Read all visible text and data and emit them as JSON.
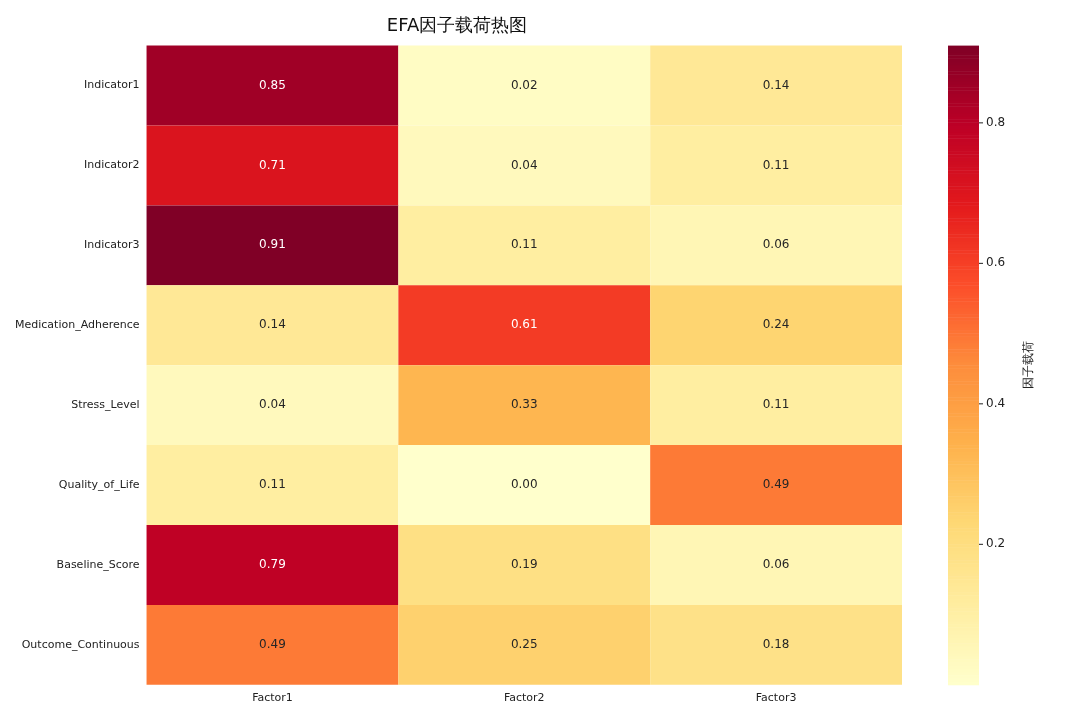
{
  "chart_data": {
    "type": "heatmap",
    "title": "EFA因子载荷热图",
    "clabel": "因子载荷",
    "categories": [
      "Factor1",
      "Factor2",
      "Factor3"
    ],
    "y_categories": [
      "Indicator1",
      "Indicator2",
      "Indicator3",
      "Medication_Adherence",
      "Stress_Level",
      "Quality_of_Life",
      "Baseline_Score",
      "Outcome_Continuous"
    ],
    "cells": [
      [
        0.85,
        0.02,
        0.14
      ],
      [
        0.71,
        0.04,
        0.11
      ],
      [
        0.91,
        0.11,
        0.06
      ],
      [
        0.14,
        0.61,
        0.24
      ],
      [
        0.04,
        0.33,
        0.11
      ],
      [
        0.11,
        0.0,
        0.49
      ],
      [
        0.79,
        0.19,
        0.06
      ],
      [
        0.49,
        0.25,
        0.18
      ]
    ],
    "cell_labels": [
      [
        "0.85",
        "0.02",
        "0.14"
      ],
      [
        "0.71",
        "0.04",
        "0.11"
      ],
      [
        "0.91",
        "0.11",
        "0.06"
      ],
      [
        "0.14",
        "0.61",
        "0.24"
      ],
      [
        "0.04",
        "0.33",
        "0.11"
      ],
      [
        "0.11",
        "0.00",
        "0.49"
      ],
      [
        "0.79",
        "0.19",
        "0.06"
      ],
      [
        "0.49",
        "0.25",
        "0.18"
      ]
    ],
    "data_labels": true,
    "clim": [
      0,
      0.91
    ],
    "cticks": [
      0.2,
      0.4,
      0.6,
      0.8
    ]
  }
}
